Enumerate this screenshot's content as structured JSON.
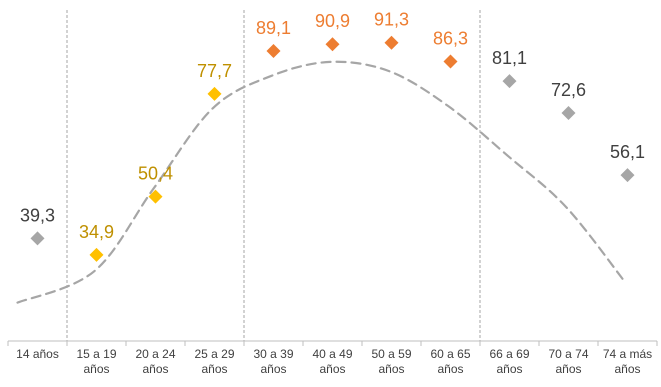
{
  "chart_data": {
    "type": "scatter",
    "title": "",
    "xlabel": "",
    "ylabel": "",
    "ylim": [
      12,
      100
    ],
    "grid": false,
    "categories": [
      [
        "14 años"
      ],
      [
        "15 a 19",
        "años"
      ],
      [
        "20 a 24",
        "años"
      ],
      [
        "25 a 29",
        "años"
      ],
      [
        "30 a 39",
        "años"
      ],
      [
        "40 a 49",
        "años"
      ],
      [
        "50 a 59",
        "años"
      ],
      [
        "60 a 65",
        "años"
      ],
      [
        "66 a 69",
        "años"
      ],
      [
        "70 a 74",
        "años"
      ],
      [
        "74 a más",
        "años"
      ]
    ],
    "values": [
      39.3,
      34.9,
      50.4,
      77.7,
      89.1,
      90.9,
      91.3,
      86.3,
      81.1,
      72.6,
      56.1
    ],
    "value_labels": [
      "39,3",
      "34,9",
      "50,4",
      "77,7",
      "89,1",
      "90,9",
      "91,3",
      "86,3",
      "81,1",
      "72,6",
      "56,1"
    ],
    "point_colors": [
      "#a6a6a6",
      "#ffc000",
      "#ffc000",
      "#ffc000",
      "#ed7d31",
      "#ed7d31",
      "#ed7d31",
      "#ed7d31",
      "#a6a6a6",
      "#a6a6a6",
      "#a6a6a6"
    ],
    "label_colors": [
      "#404040",
      "#bf9000",
      "#bf9000",
      "#bf9000",
      "#ed7d31",
      "#ed7d31",
      "#ed7d31",
      "#ed7d31",
      "#404040",
      "#404040",
      "#404040"
    ],
    "trend": {
      "style": "dashed",
      "color": "#a6a6a6",
      "x": [
        0,
        1,
        2,
        3,
        4,
        5,
        6,
        7,
        8,
        9,
        10
      ],
      "y": [
        22.2,
        30.6,
        52.5,
        73.8,
        82.5,
        86.2,
        83.7,
        74.4,
        61.3,
        47.5,
        27.5
      ]
    },
    "separators_after": [
      0,
      3,
      7
    ]
  }
}
